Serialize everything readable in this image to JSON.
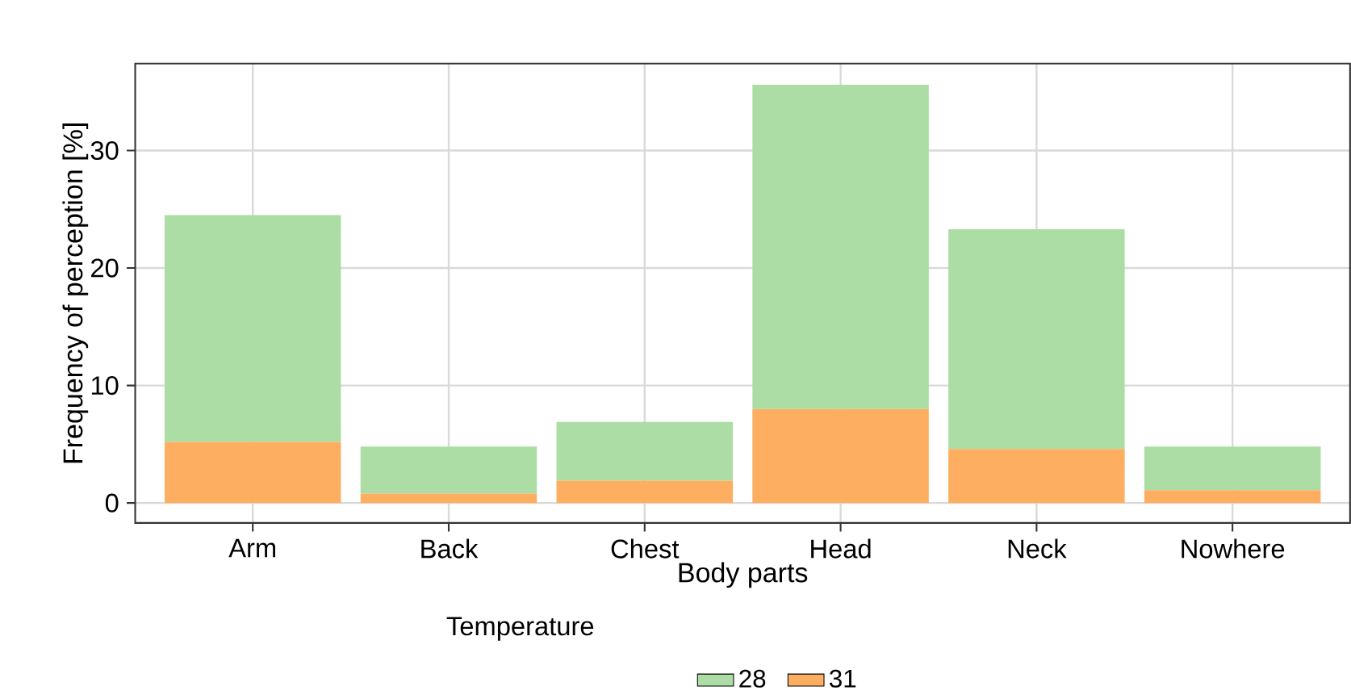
{
  "chart_data": {
    "type": "bar",
    "stacked": true,
    "xlabel": "Body parts",
    "ylabel": "Frequency of perception [%]",
    "legend_title": "Temperature",
    "categories": [
      "Arm",
      "Back",
      "Chest",
      "Head",
      "Neck",
      "Nowhere"
    ],
    "series": [
      {
        "name": "31",
        "color": "#fdae61",
        "values": [
          5.2,
          0.8,
          1.9,
          8.0,
          4.6,
          1.1
        ]
      },
      {
        "name": "28",
        "color": "#abdda4",
        "values": [
          19.3,
          4.0,
          5.0,
          27.6,
          18.7,
          3.7
        ]
      }
    ],
    "ylim": [
      -1.7,
      37.4
    ],
    "yticks": [
      0,
      10,
      20,
      30
    ],
    "grid": true,
    "legend": "bottom"
  }
}
